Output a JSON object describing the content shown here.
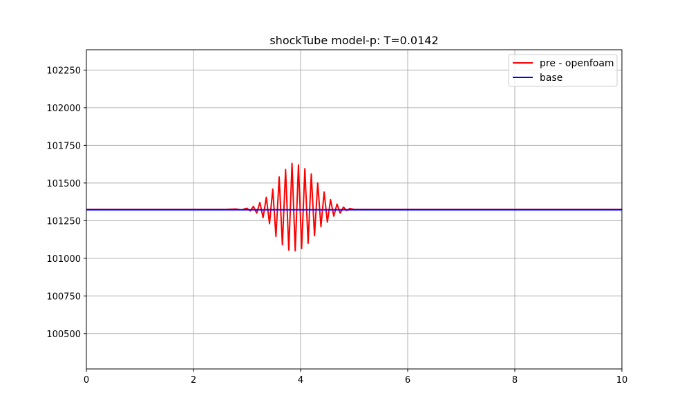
{
  "chart_data": {
    "type": "line",
    "title": "shockTube model-p: T=0.0142",
    "xlabel": "",
    "ylabel": "",
    "xlim": [
      0,
      10
    ],
    "ylim": [
      100265,
      102385
    ],
    "x_ticks": [
      0,
      2,
      4,
      6,
      8,
      10
    ],
    "y_ticks": [
      100500,
      100750,
      101000,
      101250,
      101500,
      101750,
      102000,
      102250
    ],
    "grid": true,
    "legend_position": "top-right",
    "series": [
      {
        "name": "pre - openfoam",
        "color": "#ff0000",
        "x": [
          0,
          1.0,
          2.0,
          2.6,
          2.8,
          2.9,
          3.0,
          3.06,
          3.12,
          3.18,
          3.24,
          3.3,
          3.36,
          3.42,
          3.48,
          3.54,
          3.6,
          3.66,
          3.72,
          3.78,
          3.84,
          3.9,
          3.96,
          4.02,
          4.08,
          4.14,
          4.2,
          4.26,
          4.32,
          4.38,
          4.44,
          4.5,
          4.56,
          4.62,
          4.68,
          4.74,
          4.8,
          4.86,
          4.92,
          5.0,
          6.0,
          8.0,
          10.0
        ],
        "y": [
          101325,
          101325,
          101325,
          101325,
          101327,
          101322,
          101332,
          101315,
          101345,
          101300,
          101370,
          101270,
          101405,
          101230,
          101460,
          101145,
          101540,
          101090,
          101590,
          101055,
          101630,
          101050,
          101620,
          101065,
          101595,
          101100,
          101560,
          101150,
          101500,
          101210,
          101440,
          101240,
          101390,
          101280,
          101360,
          101300,
          101340,
          101318,
          101330,
          101325,
          101325,
          101325,
          101325
        ]
      },
      {
        "name": "base",
        "color": "#0000ff",
        "x": [
          0,
          10
        ],
        "y": [
          101322,
          101322
        ]
      }
    ]
  }
}
